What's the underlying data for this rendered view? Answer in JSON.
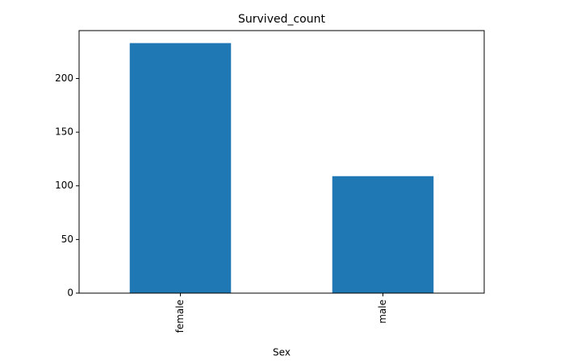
{
  "chart_data": {
    "type": "bar",
    "title": "Survived_count",
    "x_label": "Sex",
    "categories": [
      "female",
      "male"
    ],
    "values": [
      233,
      109
    ],
    "color": "#1f77b4",
    "ylim": [
      0,
      244.65
    ],
    "yticks": [
      0,
      50,
      100,
      150,
      200
    ],
    "grid": false
  }
}
